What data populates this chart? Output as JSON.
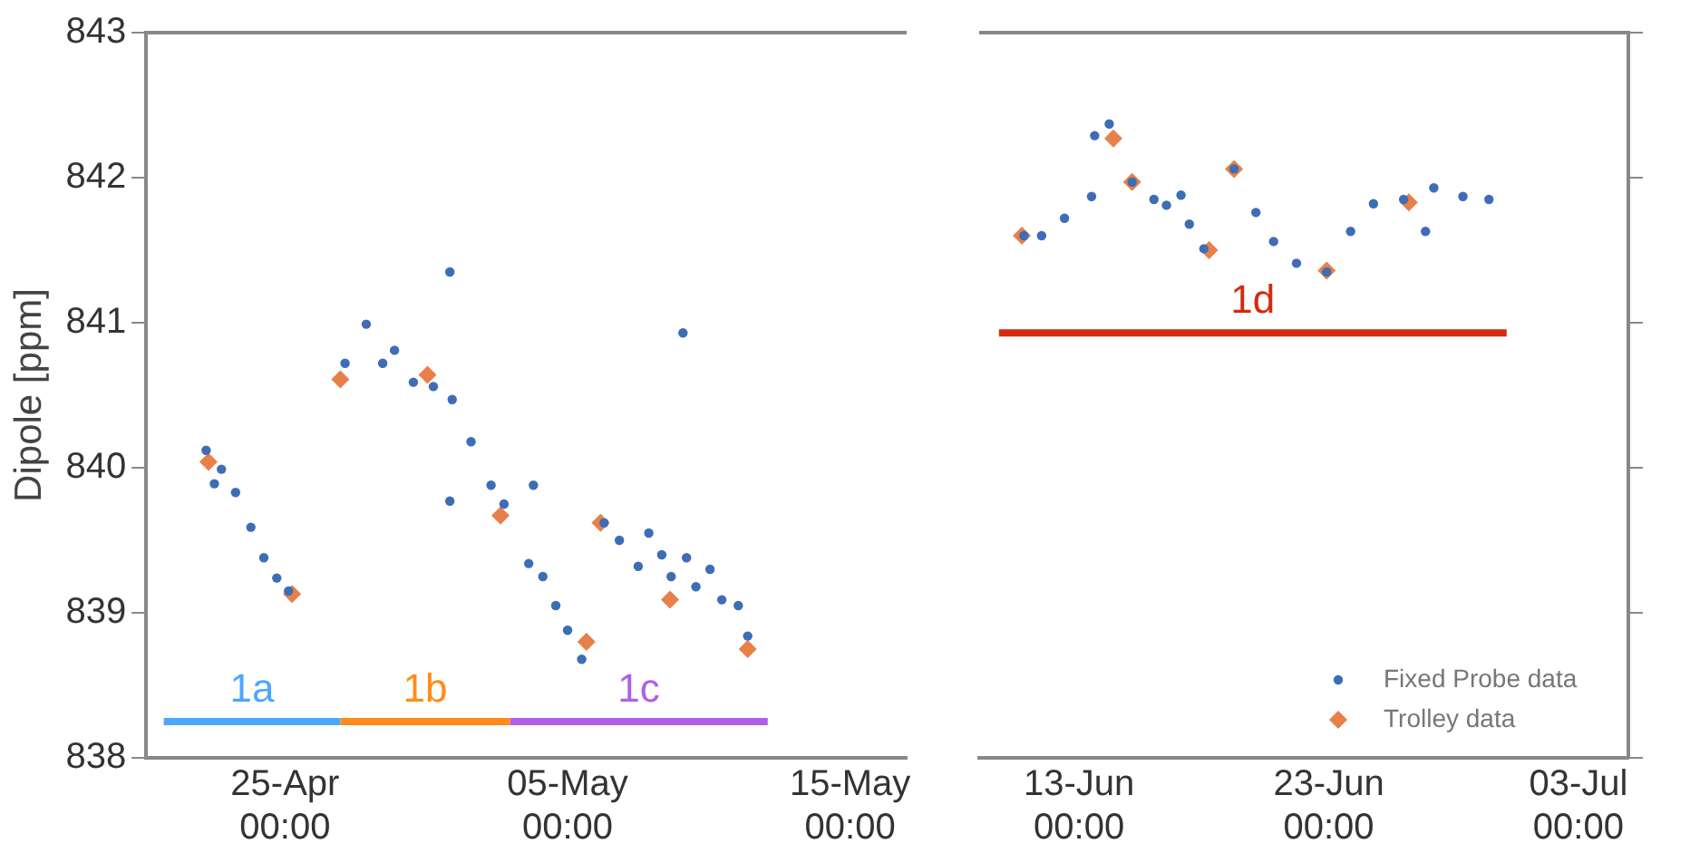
{
  "chart_data": [
    {
      "type": "scatter",
      "ylabel": "Dipole [ppm]",
      "ylim": [
        838,
        843
      ],
      "yticks": [
        838,
        839,
        840,
        841,
        842,
        843
      ],
      "xlim": [
        "--04-20T02:00",
        "--05-17T00:00"
      ],
      "xticks": [
        {
          "value": "--04-25T00:00",
          "label": "25-Apr\n00:00"
        },
        {
          "value": "--05-05T00:00",
          "label": "05-May\n00:00"
        },
        {
          "value": "--05-15T00:00",
          "label": "15-May\n00:00"
        }
      ],
      "grid": false,
      "legend": false,
      "series": [
        {
          "type": "line",
          "name": "1a",
          "color": "#4da6ff",
          "x": [
            "--04-20T17:00",
            "--04-26T23:00"
          ],
          "values": [
            838.25,
            838.25
          ]
        },
        {
          "type": "line",
          "name": "1b",
          "color": "#ff8c1a",
          "x": [
            "--04-26T23:00",
            "--05-02T23:00"
          ],
          "values": [
            838.25,
            838.25
          ]
        },
        {
          "type": "line",
          "name": "1c",
          "color": "#b05ee8",
          "x": [
            "--05-02T23:00",
            "--05-12T02:00"
          ],
          "values": [
            838.25,
            838.25
          ]
        },
        {
          "marker": "circle",
          "color": "#3e6db5",
          "x": [
            "--04-22T05:00",
            "--04-22T12:00",
            "--04-22T18:00",
            "--04-23T06:00",
            "--04-23T19:00",
            "--04-24T06:00",
            "--04-24T17:00",
            "--04-25T03:00",
            "--04-27T03:00",
            "--04-27T21:00",
            "--04-28T11:00",
            "--04-28T21:00",
            "--04-29T13:00",
            "--04-30T06:00",
            "--04-30T20:00",
            "--04-30T20:00",
            "--04-30T22:00",
            "--05-01T14:00",
            "--05-02T07:00",
            "--05-02T18:00",
            "--05-03T15:00",
            "--05-03T19:00",
            "--05-04T03:00",
            "--05-04T14:00",
            "--05-05T00:00",
            "--05-05T12:00",
            "--05-06T07:00",
            "--05-06T20:00",
            "--05-07T12:00",
            "--05-07T21:00",
            "--05-08T08:00",
            "--05-08T16:00",
            "--05-09T02:00",
            "--05-09T05:00",
            "--05-09T13:00",
            "--05-10T01:00",
            "--05-10T11:00",
            "--05-11T01:00",
            "--05-11T09:00"
          ],
          "values": [
            840.12,
            839.89,
            839.99,
            839.83,
            839.59,
            839.38,
            839.24,
            839.15,
            840.72,
            840.99,
            840.72,
            840.81,
            840.59,
            840.56,
            841.35,
            839.77,
            840.47,
            840.18,
            839.88,
            839.75,
            839.34,
            839.88,
            839.25,
            839.05,
            838.88,
            838.68,
            839.62,
            839.5,
            839.32,
            839.55,
            839.4,
            839.25,
            840.93,
            839.38,
            839.18,
            839.3,
            839.09,
            839.05,
            838.84
          ]
        },
        {
          "marker": "diamond",
          "color": "#e8804a",
          "x": [
            "--04-22T07:00",
            "--04-25T06:00",
            "--04-26T23:00",
            "--04-30T01:00",
            "--05-02T15:00",
            "--05-05T16:00",
            "--05-06T04:00",
            "--05-08T15:00",
            "--05-11T09:00"
          ],
          "values": [
            840.04,
            839.13,
            840.61,
            840.64,
            839.67,
            838.8,
            839.62,
            839.09,
            838.75
          ]
        }
      ]
    },
    {
      "type": "scatter",
      "ylim": [
        838,
        843
      ],
      "yticks": [
        838,
        839,
        840,
        841,
        842,
        843
      ],
      "xlim": [
        "--06-09T00:00",
        "--07-05T00:00"
      ],
      "xticks": [
        {
          "value": "--06-13T00:00",
          "label": "13-Jun\n00:00"
        },
        {
          "value": "--06-23T00:00",
          "label": "23-Jun\n00:00"
        },
        {
          "value": "--07-03T00:00",
          "label": "03-Jul\n00:00"
        }
      ],
      "grid": false,
      "legend": "bottom right",
      "tick_labels": "x",
      "series": [
        {
          "type": "line",
          "name": "1d",
          "color": "#d42a10",
          "x": [
            "--06-09T19:00",
            "--06-30T03:00"
          ],
          "values": [
            840.93,
            840.93
          ]
        },
        {
          "name": "Fixed Probe data",
          "marker": "circle",
          "color": "#3e6db5",
          "x": [
            "--06-10T19:00",
            "--06-11T12:00",
            "--06-12T10:00",
            "--06-13T12:00",
            "--06-13T15:00",
            "--06-14T05:00",
            "--06-15T03:00",
            "--06-16T00:00",
            "--06-16T12:00",
            "--06-17T02:00",
            "--06-17T10:00",
            "--06-18T00:00",
            "--06-19T05:00",
            "--06-20T02:00",
            "--06-20T19:00",
            "--06-21T17:00",
            "--06-22T22:00",
            "--06-23T21:00",
            "--06-24T19:00",
            "--06-26T00:00",
            "--06-26T21:00",
            "--06-27T05:00",
            "--06-28T09:00",
            "--06-29T10:00"
          ],
          "values": [
            841.6,
            841.6,
            841.72,
            841.87,
            842.29,
            842.37,
            841.97,
            841.85,
            841.81,
            841.88,
            841.68,
            841.51,
            842.06,
            841.76,
            841.56,
            841.41,
            841.35,
            841.63,
            841.82,
            841.85,
            841.63,
            841.93,
            841.87,
            841.85
          ]
        },
        {
          "name": "Trolley data",
          "marker": "diamond",
          "color": "#e8804a",
          "x": [
            "--06-10T17:00",
            "--06-14T09:00",
            "--06-15T03:00",
            "--06-18T05:00",
            "--06-19T05:00",
            "--06-22T22:00",
            "--06-26T05:00"
          ],
          "values": [
            841.6,
            842.27,
            841.97,
            841.5,
            842.06,
            841.36,
            841.83
          ]
        }
      ]
    }
  ]
}
